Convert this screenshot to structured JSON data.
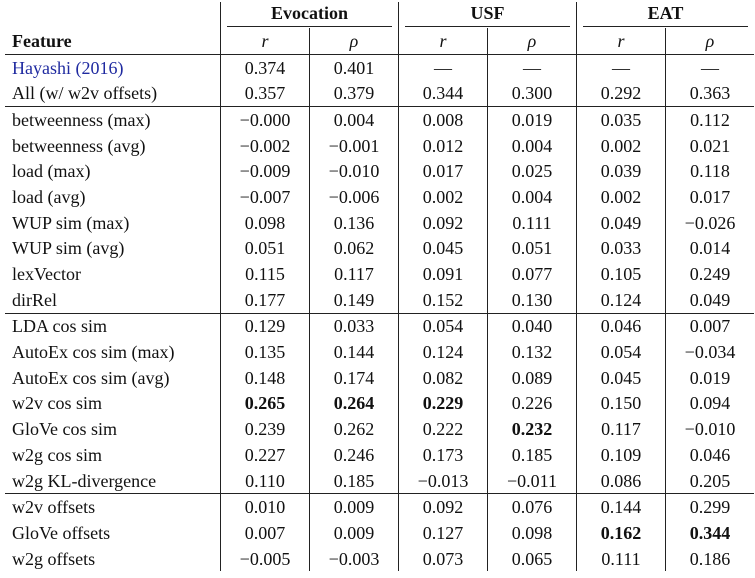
{
  "header": {
    "groups": [
      "Evocation",
      "USF",
      "EAT"
    ],
    "feature_label": "Feature",
    "sub_labels": [
      "r",
      "ρ",
      "r",
      "ρ",
      "r",
      "ρ"
    ]
  },
  "rows": [
    {
      "feature": "Hayashi (2016)",
      "cite": true,
      "values": [
        "0.374",
        "0.401",
        "—",
        "—",
        "—",
        "—"
      ],
      "bold": [],
      "top_border": true
    },
    {
      "feature": "All (w/ w2v offsets)",
      "values": [
        "0.357",
        "0.379",
        "0.344",
        "0.300",
        "0.292",
        "0.363"
      ],
      "bold": [],
      "top_border": false
    },
    {
      "feature": "betweenness (max)",
      "values": [
        "−0.000",
        "0.004",
        "0.008",
        "0.019",
        "0.035",
        "0.112"
      ],
      "bold": [],
      "top_border": true
    },
    {
      "feature": "betweenness (avg)",
      "values": [
        "−0.002",
        "−0.001",
        "0.012",
        "0.004",
        "0.002",
        "0.021"
      ],
      "bold": [],
      "top_border": false
    },
    {
      "feature": "load (max)",
      "values": [
        "−0.009",
        "−0.010",
        "0.017",
        "0.025",
        "0.039",
        "0.118"
      ],
      "bold": [],
      "top_border": false
    },
    {
      "feature": "load (avg)",
      "values": [
        "−0.007",
        "−0.006",
        "0.002",
        "0.004",
        "0.002",
        "0.017"
      ],
      "bold": [],
      "top_border": false
    },
    {
      "feature": "WUP sim (max)",
      "values": [
        "0.098",
        "0.136",
        "0.092",
        "0.111",
        "0.049",
        "−0.026"
      ],
      "bold": [],
      "top_border": false
    },
    {
      "feature": "WUP sim (avg)",
      "values": [
        "0.051",
        "0.062",
        "0.045",
        "0.051",
        "0.033",
        "0.014"
      ],
      "bold": [],
      "top_border": false
    },
    {
      "feature": "lexVector",
      "values": [
        "0.115",
        "0.117",
        "0.091",
        "0.077",
        "0.105",
        "0.249"
      ],
      "bold": [],
      "top_border": false
    },
    {
      "feature": "dirRel",
      "values": [
        "0.177",
        "0.149",
        "0.152",
        "0.130",
        "0.124",
        "0.049"
      ],
      "bold": [],
      "top_border": false
    },
    {
      "feature": "LDA cos sim",
      "values": [
        "0.129",
        "0.033",
        "0.054",
        "0.040",
        "0.046",
        "0.007"
      ],
      "bold": [],
      "top_border": true
    },
    {
      "feature": "AutoEx cos sim (max)",
      "values": [
        "0.135",
        "0.144",
        "0.124",
        "0.132",
        "0.054",
        "−0.034"
      ],
      "bold": [],
      "top_border": false
    },
    {
      "feature": "AutoEx cos sim (avg)",
      "values": [
        "0.148",
        "0.174",
        "0.082",
        "0.089",
        "0.045",
        "0.019"
      ],
      "bold": [],
      "top_border": false
    },
    {
      "feature": "w2v cos sim",
      "values": [
        "0.265",
        "0.264",
        "0.229",
        "0.226",
        "0.150",
        "0.094"
      ],
      "bold": [
        0,
        1,
        2
      ],
      "top_border": false
    },
    {
      "feature": "GloVe cos sim",
      "values": [
        "0.239",
        "0.262",
        "0.222",
        "0.232",
        "0.117",
        "−0.010"
      ],
      "bold": [
        3
      ],
      "top_border": false
    },
    {
      "feature": "w2g cos sim",
      "values": [
        "0.227",
        "0.246",
        "0.173",
        "0.185",
        "0.109",
        "0.046"
      ],
      "bold": [],
      "top_border": false
    },
    {
      "feature": "w2g KL-divergence",
      "values": [
        "0.110",
        "0.185",
        "−0.013",
        "−0.011",
        "0.086",
        "0.205"
      ],
      "bold": [],
      "top_border": false
    },
    {
      "feature": "w2v offsets",
      "values": [
        "0.010",
        "0.009",
        "0.092",
        "0.076",
        "0.144",
        "0.299"
      ],
      "bold": [],
      "top_border": true
    },
    {
      "feature": "GloVe offsets",
      "values": [
        "0.007",
        "0.009",
        "0.127",
        "0.098",
        "0.162",
        "0.344"
      ],
      "bold": [
        4,
        5
      ],
      "top_border": false
    },
    {
      "feature": "w2g offsets",
      "values": [
        "−0.005",
        "−0.003",
        "0.073",
        "0.065",
        "0.111",
        "0.186"
      ],
      "bold": [],
      "top_border": false
    }
  ]
}
